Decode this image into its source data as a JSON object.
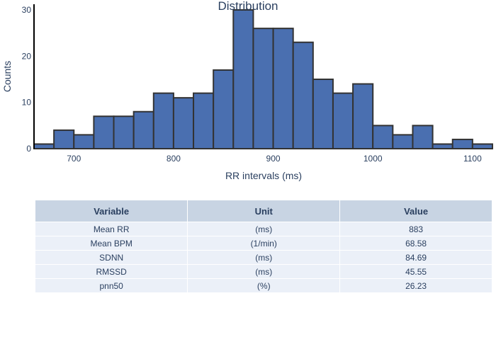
{
  "chart_data": {
    "type": "bar",
    "title": "Distribution",
    "xlabel": "RR intervals (ms)",
    "ylabel": "Counts",
    "bin_width": 20,
    "bins": [
      {
        "x0": 660,
        "x1": 680,
        "count": 1
      },
      {
        "x0": 680,
        "x1": 700,
        "count": 4
      },
      {
        "x0": 700,
        "x1": 720,
        "count": 3
      },
      {
        "x0": 720,
        "x1": 740,
        "count": 7
      },
      {
        "x0": 740,
        "x1": 760,
        "count": 7
      },
      {
        "x0": 760,
        "x1": 780,
        "count": 8
      },
      {
        "x0": 780,
        "x1": 800,
        "count": 12
      },
      {
        "x0": 800,
        "x1": 820,
        "count": 11
      },
      {
        "x0": 820,
        "x1": 840,
        "count": 12
      },
      {
        "x0": 840,
        "x1": 860,
        "count": 17
      },
      {
        "x0": 860,
        "x1": 880,
        "count": 30
      },
      {
        "x0": 880,
        "x1": 900,
        "count": 26
      },
      {
        "x0": 900,
        "x1": 920,
        "count": 26
      },
      {
        "x0": 920,
        "x1": 940,
        "count": 23
      },
      {
        "x0": 940,
        "x1": 960,
        "count": 15
      },
      {
        "x0": 960,
        "x1": 980,
        "count": 12
      },
      {
        "x0": 980,
        "x1": 1000,
        "count": 14
      },
      {
        "x0": 1000,
        "x1": 1020,
        "count": 5
      },
      {
        "x0": 1020,
        "x1": 1040,
        "count": 3
      },
      {
        "x0": 1040,
        "x1": 1060,
        "count": 5
      },
      {
        "x0": 1060,
        "x1": 1080,
        "count": 1
      },
      {
        "x0": 1080,
        "x1": 1100,
        "count": 2
      },
      {
        "x0": 1100,
        "x1": 1120,
        "count": 1
      }
    ],
    "xlim": [
      660,
      1120
    ],
    "ylim": [
      0,
      30
    ],
    "xticks": [
      700,
      800,
      900,
      1000,
      1100
    ],
    "yticks": [
      0,
      10,
      20,
      30
    ],
    "bar_color": "#4a6fb0",
    "bar_edge_color": "#333333",
    "grid": false
  },
  "table": {
    "headers": [
      "Variable",
      "Unit",
      "Value"
    ],
    "rows": [
      [
        "Mean RR",
        "(ms)",
        "883"
      ],
      [
        "Mean BPM",
        "(1/min)",
        "68.58"
      ],
      [
        "SDNN",
        "(ms)",
        "84.69"
      ],
      [
        "RMSSD",
        "(ms)",
        "45.55"
      ],
      [
        "pnn50",
        "(%)",
        "26.23"
      ]
    ],
    "header_color": "#c8d4e3",
    "cell_color": "#ebf0f8"
  }
}
